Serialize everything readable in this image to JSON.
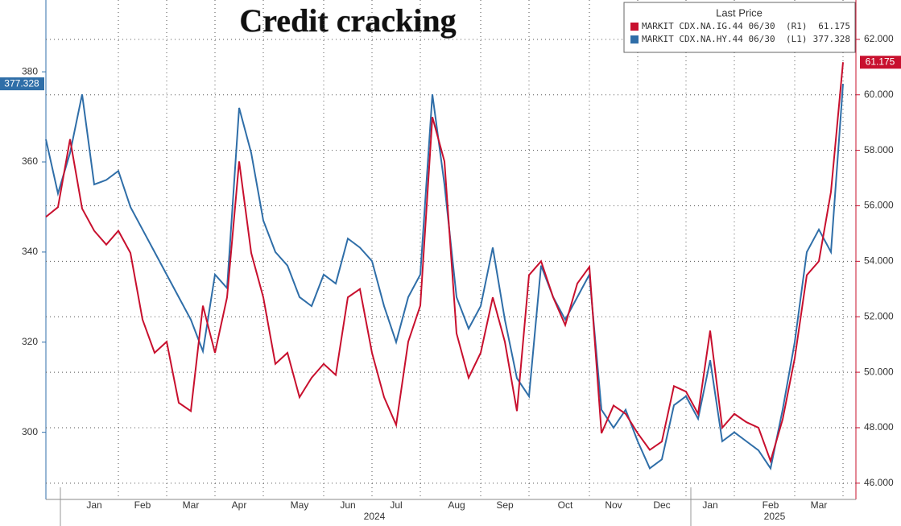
{
  "chart_data": {
    "type": "line",
    "title": "Credit cracking",
    "legend_title": "Last Price",
    "categories": [
      null,
      null,
      null,
      null,
      "Jan",
      null,
      null,
      null,
      "Feb",
      null,
      null,
      null,
      "Mar",
      null,
      null,
      null,
      "Apr",
      null,
      null,
      null,
      null,
      "May",
      null,
      null,
      null,
      "Jun",
      null,
      null,
      null,
      "Jul",
      null,
      null,
      null,
      null,
      "Aug",
      null,
      null,
      null,
      "Sep",
      null,
      null,
      null,
      null,
      "Oct",
      null,
      null,
      null,
      "Nov",
      null,
      null,
      null,
      "Dec",
      null,
      null,
      null,
      "Jan",
      null,
      null,
      null,
      null,
      "Feb",
      null,
      null,
      null,
      "Mar",
      null,
      null
    ],
    "year_labels": [
      "2024",
      "2025"
    ],
    "series": [
      {
        "name": "MARKIT CDX.NA.IG.44 06/30",
        "axis_tag": "(R1)",
        "axis": "y2",
        "color": "#c8102e",
        "values": [
          55.6,
          55.95,
          58.4,
          55.9,
          55.1,
          54.6,
          55.1,
          54.3,
          51.9,
          50.7,
          51.1,
          48.9,
          48.6,
          52.4,
          50.7,
          52.7,
          57.6,
          54.3,
          52.7,
          50.3,
          50.7,
          49.1,
          49.8,
          50.3,
          49.9,
          52.7,
          53.0,
          50.7,
          49.1,
          48.1,
          51.1,
          52.4,
          59.2,
          57.6,
          51.4,
          49.8,
          50.7,
          52.7,
          51.1,
          48.6,
          53.5,
          54.0,
          52.7,
          51.7,
          53.2,
          53.8,
          47.8,
          48.8,
          48.5,
          47.8,
          47.2,
          47.5,
          49.5,
          49.3,
          48.5,
          51.5,
          48.0,
          48.5,
          48.2,
          48.0,
          46.8,
          48.3,
          50.5,
          53.5,
          54.0,
          56.5,
          61.175
        ]
      },
      {
        "name": "MARKIT CDX.NA.HY.44 06/30",
        "axis_tag": "(L1)",
        "axis": "y",
        "color": "#2f6ea8",
        "values": [
          365,
          353,
          362,
          375,
          355,
          356,
          358,
          350,
          345,
          340,
          335,
          330,
          325,
          318,
          335,
          332,
          372,
          362,
          347,
          340,
          337,
          330,
          328,
          335,
          333,
          343,
          341,
          338,
          328,
          320,
          330,
          335,
          375,
          355,
          330,
          323,
          328,
          341,
          325,
          312,
          308,
          337,
          330,
          325,
          330,
          335,
          305,
          301,
          305,
          298,
          292,
          294,
          306,
          308,
          303,
          316,
          298,
          300,
          298,
          296,
          292,
          305,
          320,
          340,
          345,
          340,
          377.328
        ]
      }
    ],
    "ylim": [
      286,
      392
    ],
    "yticks": [
      300,
      320,
      340,
      360,
      380
    ],
    "y2lim": [
      45.56,
      62.78
    ],
    "y2ticks": [
      {
        "value": 46,
        "label": "46.000"
      },
      {
        "value": 48,
        "label": "48.000"
      },
      {
        "value": 50,
        "label": "50.000"
      },
      {
        "value": 52,
        "label": "52.000"
      },
      {
        "value": 54,
        "label": "54.000"
      },
      {
        "value": 56,
        "label": "56.000"
      },
      {
        "value": 58,
        "label": "58.000"
      },
      {
        "value": 60,
        "label": "60.000"
      },
      {
        "value": 62,
        "label": "62.000"
      }
    ],
    "grid": true
  }
}
